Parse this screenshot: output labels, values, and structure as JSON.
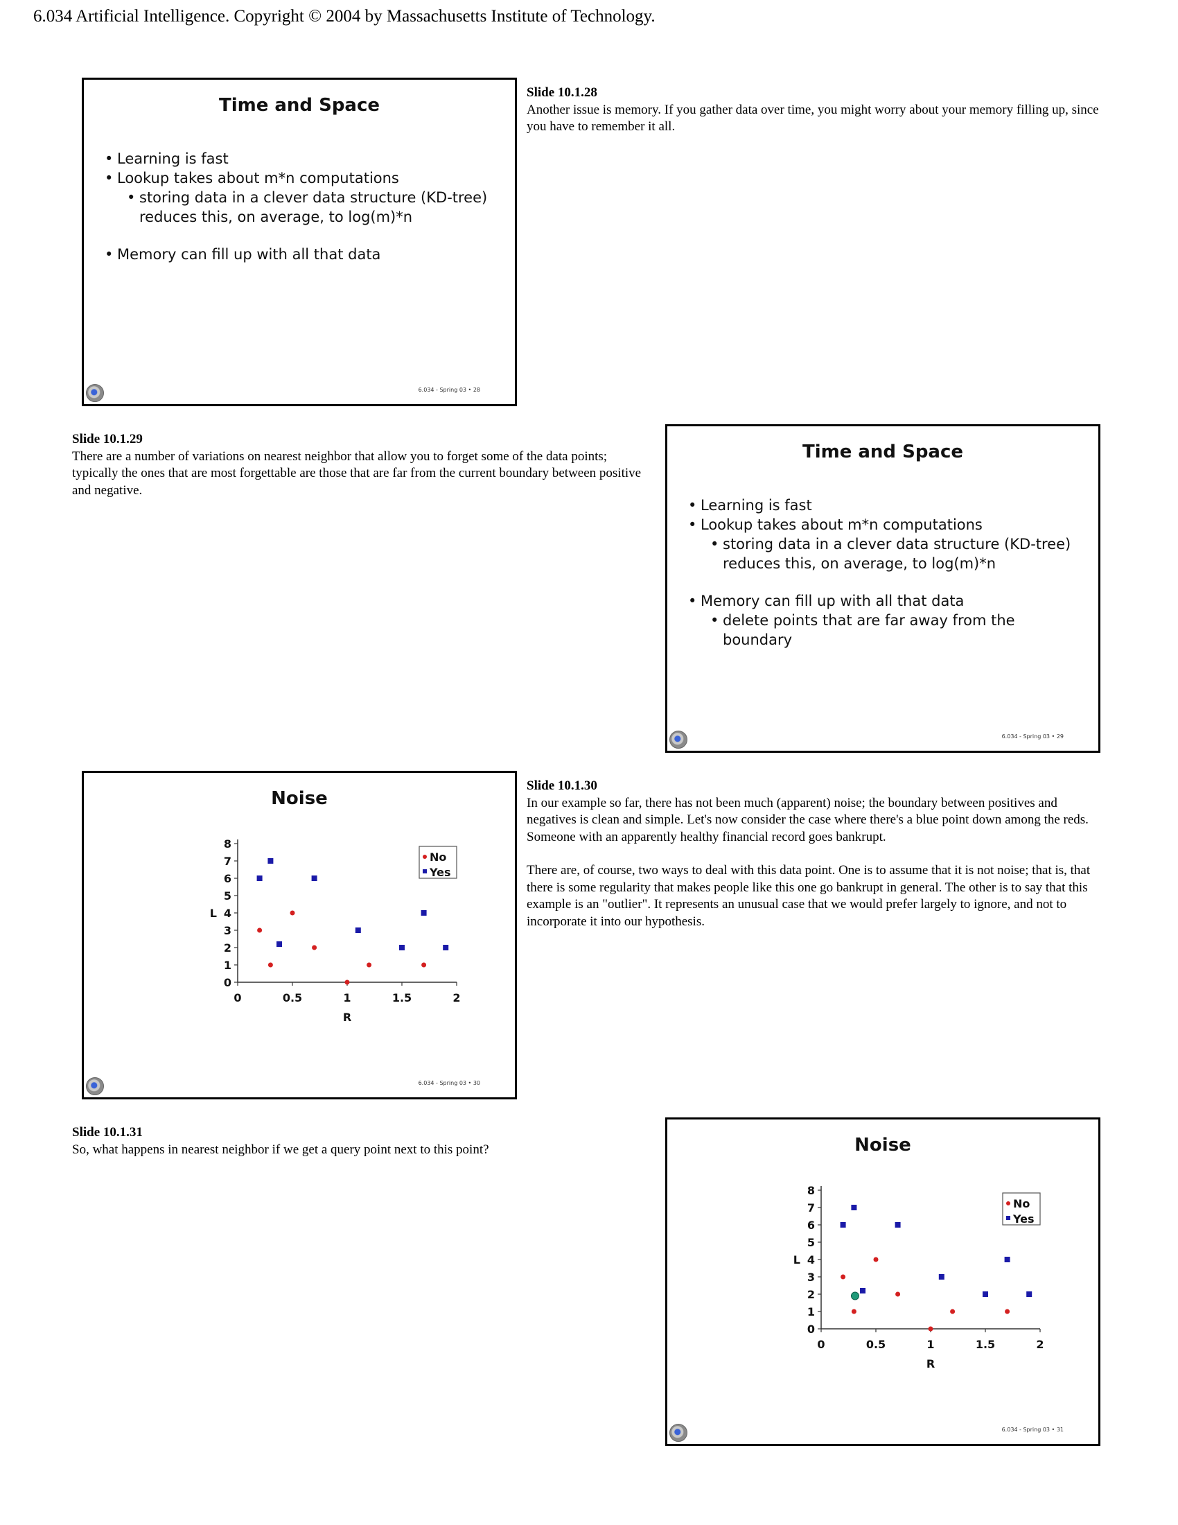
{
  "header": {
    "text": "6.034 Artificial Intelligence. Copyright © 2004 by Massachusetts Institute of Technology."
  },
  "slides": [
    {
      "title": "Time and Space",
      "bullets": [
        {
          "text": "Learning is fast",
          "level": 1
        },
        {
          "text": "Lookup takes about m*n computations",
          "level": 1
        },
        {
          "text": "storing data in a clever data structure (KD-tree) reduces this, on average, to log(m)*n",
          "level": 2
        },
        {
          "text": "Memory can fill up with all that data",
          "level": 1
        }
      ],
      "footer": "6.034 - Spring 03 • 28",
      "note_heading": "Slide 10.1.28",
      "note_paragraphs": [
        "Another issue is memory. If you gather data over time, you might worry about your memory filling up, since you have to remember it all."
      ]
    },
    {
      "title": "Time and Space",
      "bullets": [
        {
          "text": "Learning is fast",
          "level": 1
        },
        {
          "text": "Lookup takes about m*n computations",
          "level": 1
        },
        {
          "text": "storing data in a clever data structure (KD-tree) reduces this, on average, to log(m)*n",
          "level": 2
        },
        {
          "text": "Memory can fill up with all that data",
          "level": 1
        },
        {
          "text": "delete points that are far away from the boundary",
          "level": 2
        }
      ],
      "footer": "6.034 - Spring 03 • 29",
      "note_heading": "Slide 10.1.29",
      "note_paragraphs": [
        "There are a number of variations on nearest neighbor that allow you to forget some of the data points; typically the ones that are most forgettable are those that are far from the current boundary between positive and negative."
      ]
    },
    {
      "title": "Noise",
      "footer": "6.034 - Spring 03 • 30",
      "note_heading": "Slide 10.1.30",
      "note_paragraphs": [
        "In our example so far, there has not been much (apparent) noise; the boundary between positives and negatives is clean and simple. Let's now consider the case where there's a blue point down among the reds. Someone with an apparently healthy financial record goes bankrupt.",
        "There are, of course, two ways to deal with this data point. One is to assume that it is not noise; that is, that there is some regularity that makes people like this one go bankrupt in general. The other is to say that this example is an \"outlier\". It represents an unusual case that we would prefer largely to ignore, and not to incorporate it into our hypothesis."
      ]
    },
    {
      "title": "Noise",
      "footer": "6.034 - Spring 03 • 31",
      "note_heading": "Slide 10.1.31",
      "note_paragraphs": [
        "So, what happens in nearest neighbor if we get a query point next to this point?"
      ]
    }
  ],
  "chart_data": [
    {
      "type": "scatter",
      "title": "Noise",
      "xlabel": "R",
      "ylabel": "L",
      "xlim": [
        0,
        2
      ],
      "ylim": [
        0,
        8
      ],
      "xticks": [
        "0",
        "0.5",
        "1",
        "1.5",
        "2"
      ],
      "yticks": [
        "0",
        "1",
        "2",
        "3",
        "4",
        "5",
        "6",
        "7",
        "8"
      ],
      "legend_position": "top-right",
      "series": [
        {
          "name": "No",
          "color": "#d42020",
          "marker": "circle",
          "points": [
            [
              0.2,
              3
            ],
            [
              0.3,
              1
            ],
            [
              0.5,
              4
            ],
            [
              0.7,
              2
            ],
            [
              1.0,
              0
            ],
            [
              1.2,
              1
            ],
            [
              1.7,
              1
            ]
          ]
        },
        {
          "name": "Yes",
          "color": "#1a1aa8",
          "marker": "square",
          "points": [
            [
              0.2,
              6
            ],
            [
              0.3,
              7
            ],
            [
              0.7,
              6
            ],
            [
              0.38,
              2.2
            ],
            [
              1.1,
              3
            ],
            [
              1.5,
              2
            ],
            [
              1.7,
              4
            ],
            [
              1.9,
              2
            ]
          ]
        }
      ]
    },
    {
      "type": "scatter",
      "title": "Noise",
      "xlabel": "R",
      "ylabel": "L",
      "xlim": [
        0,
        2
      ],
      "ylim": [
        0,
        8
      ],
      "xticks": [
        "0",
        "0.5",
        "1",
        "1.5",
        "2"
      ],
      "yticks": [
        "0",
        "1",
        "2",
        "3",
        "4",
        "5",
        "6",
        "7",
        "8"
      ],
      "legend_position": "top-right",
      "series": [
        {
          "name": "No",
          "color": "#d42020",
          "marker": "circle",
          "points": [
            [
              0.2,
              3
            ],
            [
              0.3,
              1
            ],
            [
              0.5,
              4
            ],
            [
              0.7,
              2
            ],
            [
              1.0,
              0
            ],
            [
              1.2,
              1
            ],
            [
              1.7,
              1
            ]
          ]
        },
        {
          "name": "Yes",
          "color": "#1a1aa8",
          "marker": "square",
          "points": [
            [
              0.2,
              6
            ],
            [
              0.3,
              7
            ],
            [
              0.7,
              6
            ],
            [
              0.38,
              2.2
            ],
            [
              1.1,
              3
            ],
            [
              1.5,
              2
            ],
            [
              1.7,
              4
            ],
            [
              1.9,
              2
            ]
          ]
        }
      ],
      "query_point": {
        "color": "#1f9a78",
        "marker": "circle",
        "point": [
          0.31,
          1.9
        ]
      }
    }
  ]
}
